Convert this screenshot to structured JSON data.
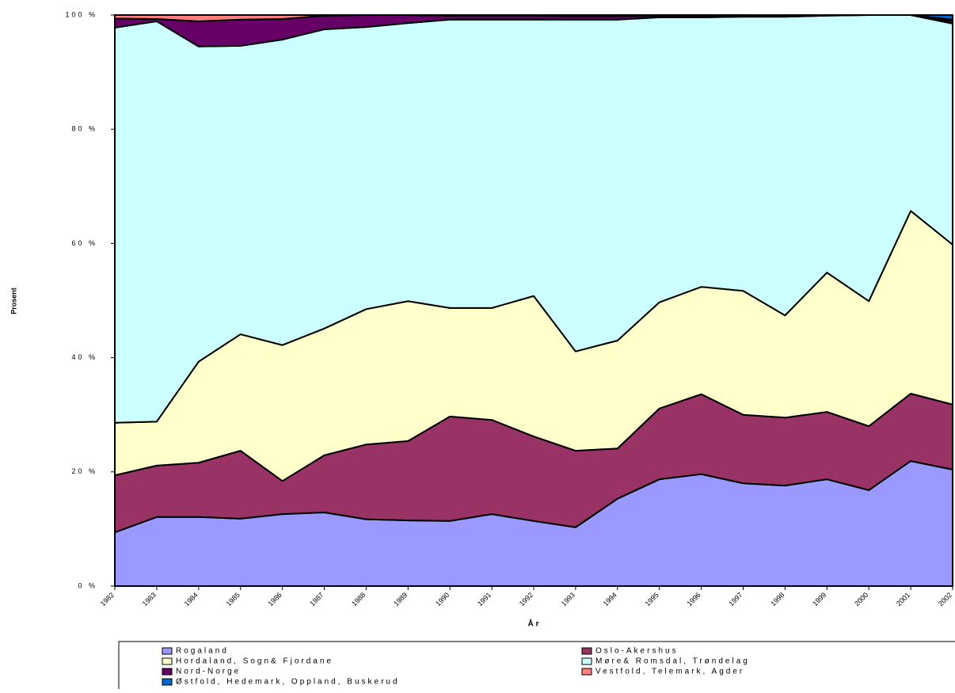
{
  "chart_data": {
    "type": "stacked_area_100",
    "x_label": "År",
    "y_label": "Prosent",
    "categories": [
      "1982",
      "1983",
      "1984",
      "1985",
      "1986",
      "1987",
      "1988",
      "1989",
      "1990",
      "1991",
      "1992",
      "1993",
      "1994",
      "1995",
      "1996",
      "1997",
      "1998",
      "1999",
      "2000",
      "2001",
      "2002"
    ],
    "series": [
      {
        "name": "Rogaland",
        "color": "#9999ff",
        "values": [
          9.4,
          12.1,
          12.1,
          11.8,
          12.6,
          12.9,
          11.7,
          11.5,
          11.4,
          12.6,
          11.4,
          10.3,
          15.3,
          18.7,
          19.6,
          18.0,
          17.6,
          18.7,
          16.8,
          21.9,
          20.4
        ]
      },
      {
        "name": "Oslo-Akershus",
        "color": "#993366",
        "values": [
          10.0,
          9.0,
          9.5,
          11.9,
          5.8,
          10.0,
          13.1,
          13.9,
          18.3,
          16.5,
          14.8,
          13.4,
          8.8,
          12.4,
          14.0,
          12.0,
          11.9,
          11.8,
          11.2,
          11.8,
          11.4
        ]
      },
      {
        "name": "Hordaland, Sogn& Fjordane",
        "color": "#ffffcc",
        "values": [
          9.2,
          7.7,
          17.7,
          20.4,
          23.8,
          22.2,
          23.7,
          24.5,
          19.0,
          19.6,
          24.6,
          17.4,
          18.9,
          18.6,
          18.8,
          21.7,
          17.9,
          24.4,
          21.9,
          32.0,
          28.0
        ]
      },
      {
        "name": "Møre& Romsdal, Trøndelag",
        "color": "#ccffff",
        "values": [
          69.2,
          70.1,
          55.2,
          50.5,
          53.5,
          52.4,
          49.4,
          48.7,
          50.5,
          50.5,
          48.4,
          58.1,
          56.2,
          49.9,
          47.2,
          48.0,
          52.3,
          45.0,
          50.1,
          34.3,
          38.7
        ]
      },
      {
        "name": "Nord-Norge",
        "color": "#660066",
        "values": [
          1.6,
          0.4,
          4.4,
          4.6,
          3.6,
          2.4,
          2.1,
          1.4,
          0.7,
          0.7,
          0.7,
          0.6,
          0.6,
          0.3,
          0.3,
          0.2,
          0.2,
          0.1,
          0,
          0,
          0.4
        ]
      },
      {
        "name": "Vestfold, Telemark, Agder",
        "color": "#ff8080",
        "values": [
          0.6,
          0.7,
          1.1,
          0.8,
          0.7,
          0.1,
          0,
          0,
          0.1,
          0.1,
          0.1,
          0.2,
          0.2,
          0.1,
          0.1,
          0.1,
          0.1,
          0,
          0,
          0,
          0.3
        ]
      },
      {
        "name": "Østfold, Hedemark, Oppland, Buskerud",
        "color": "#0066cc",
        "values": [
          0,
          0,
          0,
          0,
          0,
          0,
          0,
          0,
          0,
          0,
          0,
          0,
          0,
          0,
          0,
          0,
          0,
          0,
          0,
          0,
          0.8
        ]
      }
    ],
    "ylim": [
      0,
      100
    ],
    "yticks": [
      {
        "value": 0,
        "label": "0 %"
      },
      {
        "value": 20,
        "label": "20 %"
      },
      {
        "value": 40,
        "label": "40 %"
      },
      {
        "value": 60,
        "label": "60 %"
      },
      {
        "value": 80,
        "label": "80 %"
      },
      {
        "value": 100,
        "label": "100 %"
      }
    ]
  }
}
